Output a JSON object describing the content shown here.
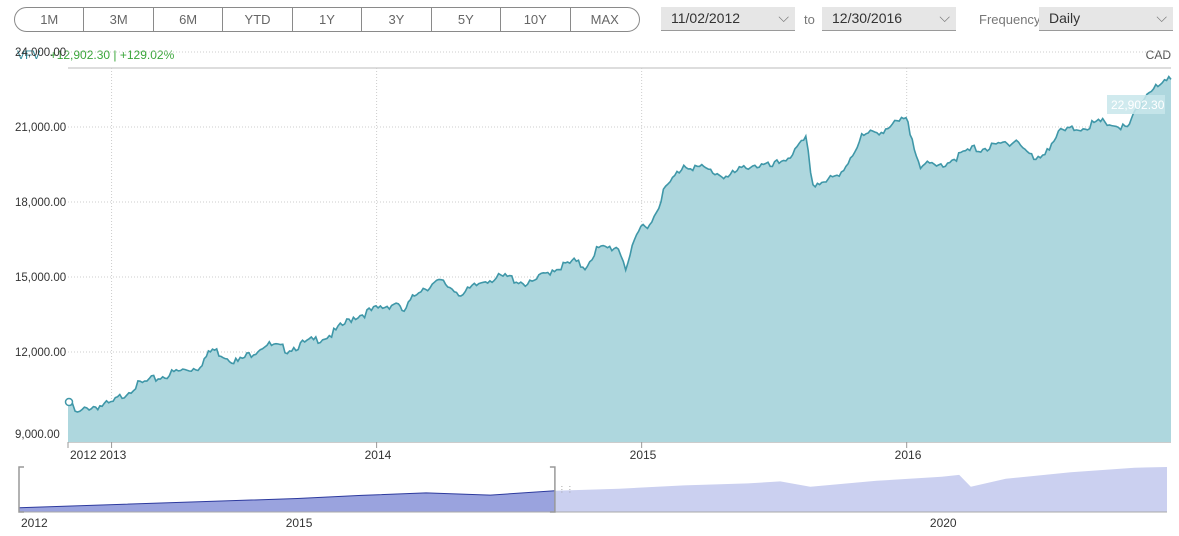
{
  "range_buttons": [
    "1M",
    "3M",
    "6M",
    "YTD",
    "1Y",
    "3Y",
    "5Y",
    "10Y",
    "MAX"
  ],
  "date_from": "11/02/2012",
  "to_label": "to",
  "date_to": "12/30/2016",
  "frequency_label": "Frequency",
  "frequency_value": "Daily",
  "legend": {
    "ticker": "VFV",
    "change": "+12,902.30 | +129.02%"
  },
  "currency": "CAD",
  "colors": {
    "line": "#3f97a8",
    "fill": "#aed7de",
    "navigator_selected": "#9aa3de",
    "navigator_rest": "#cbd0f0"
  },
  "chart_data": {
    "type": "area",
    "series": [
      {
        "name": "VFV",
        "values": [
          [
            "2012-11-02",
            10000
          ],
          [
            "2012-11-15",
            9500
          ],
          [
            "2012-12-01",
            9800
          ],
          [
            "2012-12-31",
            9900
          ],
          [
            "2013-01-31",
            10600
          ],
          [
            "2013-02-28",
            10900
          ],
          [
            "2013-03-31",
            11200
          ],
          [
            "2013-04-30",
            11400
          ],
          [
            "2013-05-20",
            12100
          ],
          [
            "2013-06-24",
            11600
          ],
          [
            "2013-07-31",
            12300
          ],
          [
            "2013-08-31",
            12100
          ],
          [
            "2013-09-30",
            12400
          ],
          [
            "2013-10-31",
            12700
          ],
          [
            "2013-11-30",
            13400
          ],
          [
            "2013-12-31",
            13700
          ],
          [
            "2014-01-31",
            14000
          ],
          [
            "2014-02-05",
            13500
          ],
          [
            "2014-02-28",
            14500
          ],
          [
            "2014-03-31",
            14800
          ],
          [
            "2014-04-30",
            14300
          ],
          [
            "2014-05-31",
            14900
          ],
          [
            "2014-06-30",
            15000
          ],
          [
            "2014-07-31",
            14700
          ],
          [
            "2014-08-31",
            15300
          ],
          [
            "2014-09-30",
            15600
          ],
          [
            "2014-10-15",
            15400
          ],
          [
            "2014-10-31",
            16100
          ],
          [
            "2014-11-30",
            16200
          ],
          [
            "2014-12-10",
            15400
          ],
          [
            "2014-12-31",
            17000
          ],
          [
            "2015-01-15",
            17200
          ],
          [
            "2015-01-31",
            18400
          ],
          [
            "2015-02-28",
            19500
          ],
          [
            "2015-03-31",
            19300
          ],
          [
            "2015-04-30",
            19000
          ],
          [
            "2015-05-31",
            19500
          ],
          [
            "2015-06-30",
            19400
          ],
          [
            "2015-07-31",
            20000
          ],
          [
            "2015-08-15",
            20500
          ],
          [
            "2015-08-25",
            18700
          ],
          [
            "2015-09-30",
            19000
          ],
          [
            "2015-10-31",
            20600
          ],
          [
            "2015-11-30",
            20900
          ],
          [
            "2015-12-31",
            21300
          ],
          [
            "2016-01-20",
            19500
          ],
          [
            "2016-02-11",
            19400
          ],
          [
            "2016-03-31",
            20100
          ],
          [
            "2016-04-30",
            20200
          ],
          [
            "2016-05-31",
            20500
          ],
          [
            "2016-06-27",
            19600
          ],
          [
            "2016-07-31",
            20800
          ],
          [
            "2016-08-31",
            21000
          ],
          [
            "2016-09-30",
            21200
          ],
          [
            "2016-10-31",
            20900
          ],
          [
            "2016-11-08",
            21400
          ],
          [
            "2016-11-30",
            22500
          ],
          [
            "2016-12-15",
            22600
          ],
          [
            "2016-12-30",
            22902.3
          ]
        ]
      }
    ],
    "y_ticks": [
      "9,000.00",
      "12,000.00",
      "15,000.00",
      "18,000.00",
      "21,000.00",
      "24,000.00"
    ],
    "ylim": [
      9000,
      24000
    ],
    "x_ticks": [
      "2012",
      "2013",
      "2014",
      "2015",
      "2016"
    ],
    "xlim": [
      "2012-11-02",
      "2016-12-30"
    ],
    "last_value_label": "22,902.30",
    "navigator": {
      "x_ticks": [
        "2012",
        "2015",
        "2020"
      ],
      "values": [
        [
          "2012-11-02",
          10000
        ],
        [
          "2013-12-31",
          13700
        ],
        [
          "2014-12-31",
          17000
        ],
        [
          "2015-06-30",
          19400
        ],
        [
          "2015-12-31",
          21300
        ],
        [
          "2016-06-30",
          19600
        ],
        [
          "2016-12-30",
          22900
        ],
        [
          "2017-06-30",
          24500
        ],
        [
          "2017-12-31",
          27000
        ],
        [
          "2018-06-30",
          28500
        ],
        [
          "2018-09-30",
          30000
        ],
        [
          "2018-12-24",
          26000
        ],
        [
          "2019-06-30",
          30500
        ],
        [
          "2019-12-31",
          33500
        ],
        [
          "2020-02-19",
          35000
        ],
        [
          "2020-03-23",
          26000
        ],
        [
          "2020-06-30",
          32000
        ],
        [
          "2020-12-31",
          37000
        ],
        [
          "2021-06-30",
          40500
        ],
        [
          "2021-09-30",
          41000
        ]
      ]
    }
  }
}
